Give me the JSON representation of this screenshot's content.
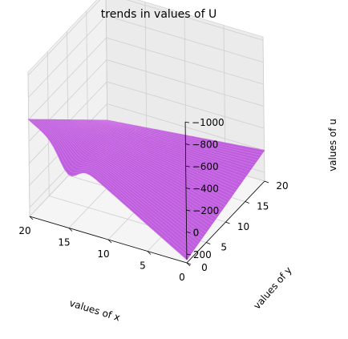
{
  "chart_data": {
    "type": "surface3d",
    "title": "trends in values of U",
    "xlabel": "values of x",
    "ylabel": "values of y",
    "zlabel": "values of u",
    "xlim": [
      0,
      20
    ],
    "ylim": [
      0,
      20
    ],
    "zlim": [
      250,
      -1000
    ],
    "z_axis_inverted": true,
    "x_ticks": [
      "20",
      "15",
      "10",
      "5",
      "0"
    ],
    "y_ticks": [
      "0",
      "5",
      "10",
      "15",
      "20"
    ],
    "z_ticks": [
      "−1000",
      "−800",
      "−600",
      "−400",
      "−200",
      "0",
      "200"
    ],
    "grid": true,
    "surface_color": "#bb55dd",
    "corner_values": [
      {
        "x": 20,
        "y": 0,
        "u": -600
      },
      {
        "x": 0,
        "y": 20,
        "u": 0
      },
      {
        "x": 0,
        "y": 0,
        "u": 250
      },
      {
        "x": 20,
        "y": 20,
        "u": 150
      }
    ]
  }
}
